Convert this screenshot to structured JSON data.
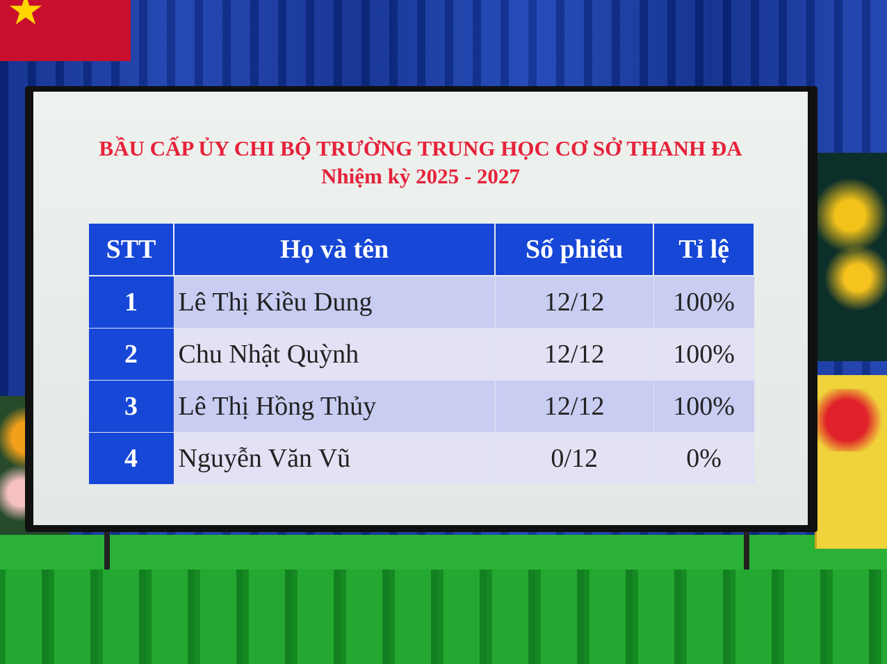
{
  "title": "BẦU CẤP ỦY CHI BỘ TRƯỜNG TRUNG HỌC CƠ SỞ THANH ĐA",
  "subtitle": "Nhiệm kỳ 2025 - 2027",
  "table": {
    "headers": [
      "STT",
      "Họ và tên",
      "Số phiếu",
      "Tỉ lệ"
    ],
    "rows": [
      [
        "1",
        "Lê Thị Kiều Dung",
        "12/12",
        "100%"
      ],
      [
        "2",
        "Chu Nhật Quỳnh",
        "12/12",
        "100%"
      ],
      [
        "3",
        "Lê Thị Hồng Thủy",
        "12/12",
        "100%"
      ],
      [
        "4",
        "Nguyễn Văn Vũ",
        "0/12",
        "0%"
      ]
    ]
  },
  "colors": {
    "title": "#e5223a",
    "header": "#1747d6"
  }
}
